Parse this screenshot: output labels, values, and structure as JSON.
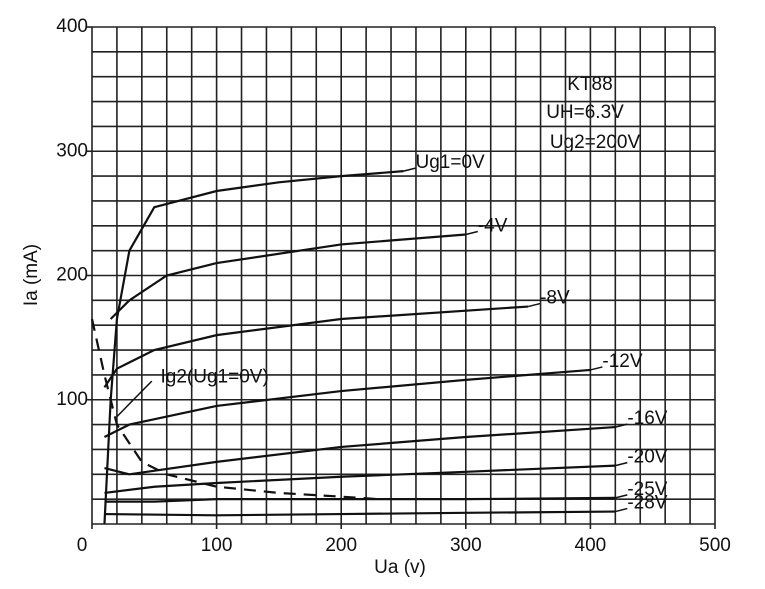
{
  "chart_data": {
    "type": "line",
    "title": "KT88",
    "notes": [
      "UH=6.3V",
      "Ug2=200V"
    ],
    "x_label": "Ua (v)",
    "y_label": "Ia (mA)",
    "xlim": [
      0,
      500
    ],
    "ylim": [
      0,
      400
    ],
    "xticks": [
      0,
      100,
      200,
      300,
      400,
      500
    ],
    "yticks": [
      100,
      200,
      300,
      400
    ],
    "xminor": [
      0,
      20,
      40,
      60,
      80,
      100,
      120,
      140,
      160,
      180,
      200,
      220,
      240,
      260,
      280,
      300,
      320,
      340,
      360,
      380,
      400,
      420,
      440,
      460,
      480,
      500
    ],
    "yminor": [
      0,
      20,
      40,
      60,
      80,
      100,
      120,
      140,
      160,
      180,
      200,
      220,
      240,
      260,
      280,
      300,
      320,
      340,
      360,
      380,
      400
    ],
    "grid": true,
    "series": [
      {
        "name": "Ug1=0V",
        "color": "#111111",
        "x": [
          10,
          15,
          20,
          30,
          50,
          100,
          150,
          200,
          250
        ],
        "values": [
          0,
          100,
          165,
          220,
          255,
          268,
          275,
          280,
          284
        ]
      },
      {
        "name": "-4V",
        "color": "#111111",
        "x": [
          15,
          30,
          60,
          100,
          200,
          300
        ],
        "values": [
          165,
          180,
          200,
          210,
          225,
          233
        ]
      },
      {
        "name": "-8V",
        "color": "#111111",
        "x": [
          10,
          20,
          50,
          100,
          200,
          350
        ],
        "values": [
          110,
          125,
          140,
          152,
          165,
          175
        ]
      },
      {
        "name": "-12V",
        "color": "#111111",
        "x": [
          10,
          30,
          100,
          200,
          300,
          400
        ],
        "values": [
          70,
          80,
          95,
          107,
          116,
          124
        ]
      },
      {
        "name": "-16V",
        "color": "#111111",
        "x": [
          10,
          30,
          100,
          200,
          300,
          420
        ],
        "values": [
          45,
          40,
          50,
          62,
          70,
          78
        ]
      },
      {
        "name": "-20V",
        "color": "#111111",
        "x": [
          10,
          50,
          100,
          200,
          300,
          420
        ],
        "values": [
          25,
          30,
          33,
          38,
          42,
          47
        ]
      },
      {
        "name": "-25V",
        "color": "#111111",
        "x": [
          10,
          50,
          100,
          200,
          300,
          420
        ],
        "values": [
          18,
          18,
          20,
          20,
          20,
          21
        ]
      },
      {
        "name": "-28V",
        "color": "#111111",
        "x": [
          10,
          100,
          200,
          300,
          420
        ],
        "values": [
          8,
          7,
          8,
          9,
          10
        ]
      },
      {
        "name": "Ig2(Ug1=0V)",
        "color": "#111111",
        "dashed": true,
        "x": [
          0,
          10,
          20,
          40,
          60,
          100,
          150,
          200,
          230
        ],
        "values": [
          165,
          120,
          80,
          50,
          40,
          30,
          25,
          22,
          20
        ]
      }
    ]
  }
}
